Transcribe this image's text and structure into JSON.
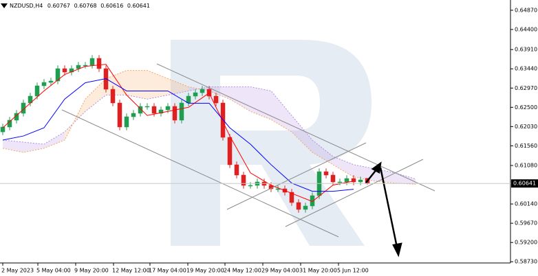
{
  "chart_data": {
    "type": "candlestick",
    "title": "NZDUSD,H4",
    "candles": {
      "open": [
        0.619,
        0.62019,
        0.62186,
        0.62354,
        0.62606,
        0.62773,
        0.63025,
        0.63108,
        0.63142,
        0.63444,
        0.6336,
        0.63444,
        0.63527,
        0.63527,
        0.63695,
        0.63444,
        0.62941,
        0.62606,
        0.62019,
        0.6227,
        0.62354,
        0.62522,
        0.62522,
        0.62354,
        0.62438,
        0.62522,
        0.62186,
        0.62606,
        0.62773,
        0.62857,
        0.62941,
        0.62773,
        0.62606,
        0.61767,
        0.61097,
        0.60846,
        0.60594,
        0.60594,
        0.60678,
        0.60594,
        0.6051,
        0.6051,
        0.60426,
        0.60175,
        0.60007,
        0.60091,
        0.60343,
        0.60929,
        0.60846,
        0.60678,
        0.60678,
        0.60762,
        0.60678,
        0.60767
      ],
      "high": [
        0.62099,
        0.62266,
        0.62434,
        0.62686,
        0.62853,
        0.63105,
        0.63188,
        0.63222,
        0.63524,
        0.63524,
        0.63524,
        0.63607,
        0.63607,
        0.63775,
        0.63775,
        0.63524,
        0.63021,
        0.62686,
        0.6235,
        0.62434,
        0.62602,
        0.62602,
        0.62602,
        0.62518,
        0.62602,
        0.62602,
        0.62686,
        0.62853,
        0.62937,
        0.63021,
        0.63021,
        0.62853,
        0.62686,
        0.61847,
        0.61177,
        0.60926,
        0.60674,
        0.60758,
        0.60758,
        0.60674,
        0.6059,
        0.6059,
        0.60506,
        0.60255,
        0.60171,
        0.60423,
        0.61009,
        0.61009,
        0.60926,
        0.60758,
        0.60842,
        0.60842,
        0.60808,
        0.60768
      ],
      "low": [
        0.6182,
        0.61939,
        0.62106,
        0.62274,
        0.62526,
        0.62693,
        0.62945,
        0.63028,
        0.63062,
        0.6328,
        0.6328,
        0.63364,
        0.63447,
        0.63447,
        0.63364,
        0.62861,
        0.62526,
        0.61939,
        0.61939,
        0.6219,
        0.62274,
        0.62442,
        0.62274,
        0.62274,
        0.62358,
        0.62106,
        0.62106,
        0.62526,
        0.62693,
        0.62777,
        0.62693,
        0.62526,
        0.61687,
        0.61017,
        0.60766,
        0.60514,
        0.60514,
        0.60514,
        0.60514,
        0.6043,
        0.6043,
        0.60346,
        0.60095,
        0.59927,
        0.59927,
        0.60011,
        0.60263,
        0.60766,
        0.60598,
        0.60598,
        0.60598,
        0.60598,
        0.60598,
        0.60616
      ],
      "close": [
        0.62019,
        0.62186,
        0.62354,
        0.62606,
        0.62773,
        0.63025,
        0.63108,
        0.63142,
        0.63444,
        0.6336,
        0.63444,
        0.63527,
        0.63527,
        0.63695,
        0.63444,
        0.62941,
        0.62606,
        0.62019,
        0.6227,
        0.62354,
        0.62522,
        0.62522,
        0.62354,
        0.62438,
        0.62522,
        0.62186,
        0.62606,
        0.62773,
        0.62857,
        0.62941,
        0.62773,
        0.62606,
        0.61767,
        0.61097,
        0.60846,
        0.60594,
        0.60594,
        0.60678,
        0.60594,
        0.6051,
        0.6051,
        0.60426,
        0.60175,
        0.60007,
        0.60091,
        0.60343,
        0.60929,
        0.60846,
        0.60678,
        0.60678,
        0.60762,
        0.60678,
        0.60728,
        0.60641
      ],
      "up_color": "#1f9e50",
      "down_color": "#e02020"
    },
    "lines": [
      {
        "color": "#ff0000",
        "x": [
          0,
          3,
          6,
          9,
          12,
          15,
          18,
          21,
          24,
          27,
          30,
          33,
          36,
          39,
          42,
          45,
          48,
          51
        ],
        "values": [
          0.62,
          0.6245,
          0.629,
          0.633,
          0.635,
          0.6355,
          0.628,
          0.623,
          0.624,
          0.625,
          0.6285,
          0.618,
          0.609,
          0.606,
          0.604,
          0.602,
          0.606,
          0.607
        ]
      },
      {
        "color": "#0000ff",
        "x": [
          0,
          3,
          6,
          9,
          12,
          15,
          18,
          21,
          24,
          27,
          30,
          33,
          36,
          39,
          42,
          45,
          48,
          51
        ],
        "values": [
          0.617,
          0.618,
          0.62,
          0.627,
          0.631,
          0.632,
          0.629,
          0.629,
          0.629,
          0.626,
          0.626,
          0.62,
          0.616,
          0.611,
          0.6065,
          0.6045,
          0.6045,
          0.605
        ]
      }
    ],
    "cloud": {
      "x": [
        0,
        3,
        6,
        9,
        12,
        15,
        18,
        21,
        24,
        27,
        30,
        33,
        36,
        39,
        42,
        45,
        48,
        51,
        54,
        57,
        60
      ],
      "span_a": [
        0.617,
        0.6165,
        0.616,
        0.619,
        0.624,
        0.628,
        0.628,
        0.627,
        0.628,
        0.629,
        0.63,
        0.63,
        0.63,
        0.629,
        0.623,
        0.617,
        0.613,
        0.611,
        0.61,
        0.609,
        0.6075
      ],
      "span_b": [
        0.615,
        0.614,
        0.615,
        0.617,
        0.627,
        0.632,
        0.634,
        0.634,
        0.632,
        0.63,
        0.629,
        0.627,
        0.624,
        0.622,
        0.619,
        0.614,
        0.611,
        0.608,
        0.607,
        0.6065,
        0.6062
      ],
      "color_a": "#b08ee0",
      "color_b": "#f4a460"
    },
    "xlim": [
      0,
      73.8
    ],
    "ylim": [
      0.587,
      0.6512
    ],
    "yticks": [
      {
        "value": 0.6487,
        "label": "0.64870"
      },
      {
        "value": 0.644,
        "label": "0.64400"
      },
      {
        "value": 0.6391,
        "label": "0.63910"
      },
      {
        "value": 0.6344,
        "label": "0.63440"
      },
      {
        "value": 0.6297,
        "label": "0.62970"
      },
      {
        "value": 0.625,
        "label": "0.62500"
      },
      {
        "value": 0.6203,
        "label": "0.62030"
      },
      {
        "value": 0.6156,
        "label": "0.61560"
      },
      {
        "value": 0.6108,
        "label": "0.61080"
      },
      {
        "value": 0.6014,
        "label": "0.60140"
      },
      {
        "value": 0.5967,
        "label": "0.59670"
      },
      {
        "value": 0.592,
        "label": "0.59200"
      },
      {
        "value": 0.5873,
        "label": "0.58730"
      }
    ],
    "xticks": [
      {
        "value": 0,
        "label": "2 May 2023"
      },
      {
        "value": 5.1,
        "label": "5 May 04:00"
      },
      {
        "value": 10.6,
        "label": "9 May 20:00"
      },
      {
        "value": 16.1,
        "label": "12 May 12:00"
      },
      {
        "value": 21.4,
        "label": "17 May 04:00"
      },
      {
        "value": 26.9,
        "label": "19 May 20:00"
      },
      {
        "value": 32.3,
        "label": "24 May 12:00"
      },
      {
        "value": 37.8,
        "label": "29 May 04:00"
      },
      {
        "value": 43.3,
        "label": "31 May 20:00"
      },
      {
        "value": 48.8,
        "label": "5 Jun 12:00"
      }
    ]
  }
}
